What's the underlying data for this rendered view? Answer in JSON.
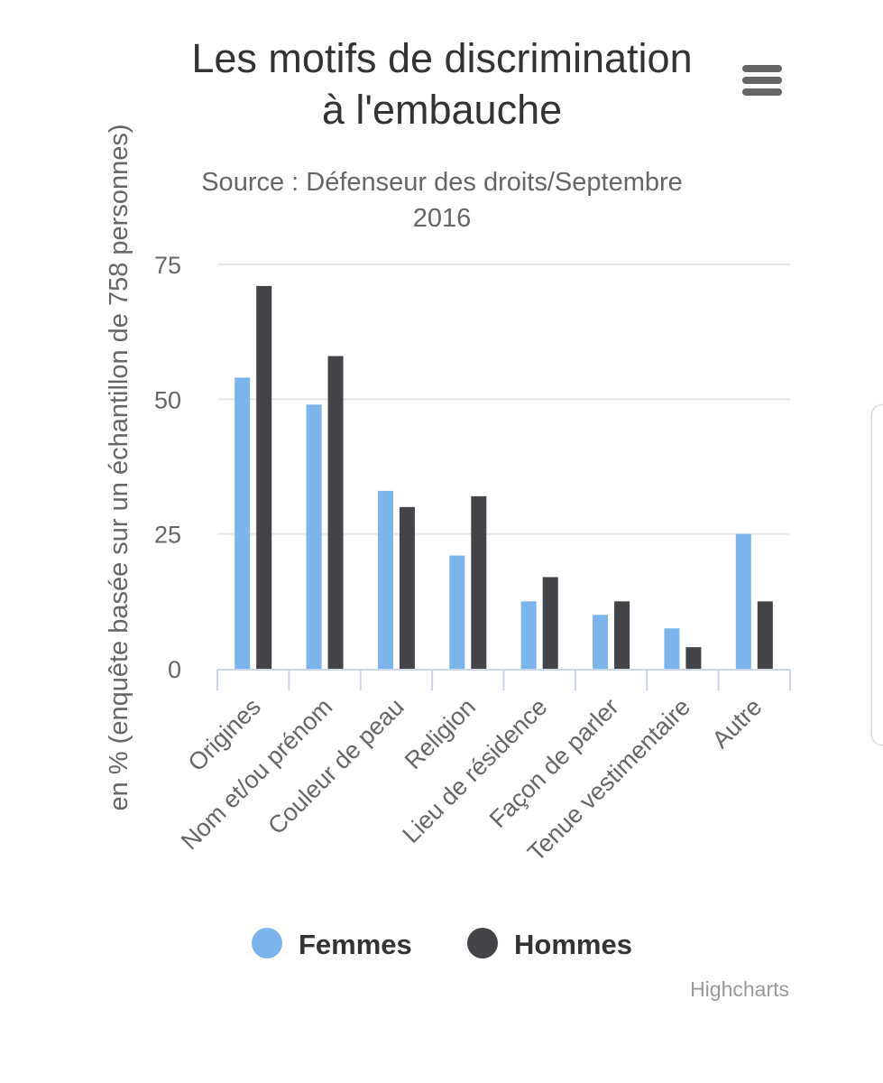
{
  "chart_data": {
    "type": "bar",
    "title_lines": [
      "Les motifs de discrimination",
      "à l'embauche"
    ],
    "subtitle_lines": [
      "Source : Défenseur des droits/Septembre",
      "2016"
    ],
    "ylabel": "en % (enquête basée sur un échantillon de 758 personnes)",
    "xlabel": "",
    "ylim": [
      0,
      75
    ],
    "yticks": [
      0,
      25,
      50,
      75
    ],
    "grid": true,
    "legend_position": "bottom-center",
    "categories": [
      "Origines",
      "Nom et/ou prénom",
      "Couleur de peau",
      "Religion",
      "Lieu de résidence",
      "Façon de parler",
      "Tenue vestimentaire",
      "Autre"
    ],
    "series": [
      {
        "name": "Femmes",
        "color": "#7cb5ec",
        "values": [
          54,
          49,
          33,
          21,
          12.5,
          10,
          7.5,
          25
        ]
      },
      {
        "name": "Hommes",
        "color": "#434348",
        "values": [
          71,
          58,
          30,
          32,
          17,
          12.5,
          4,
          12.5
        ]
      }
    ],
    "credits": "Highcharts"
  },
  "menu_icon": "hamburger-menu-icon"
}
